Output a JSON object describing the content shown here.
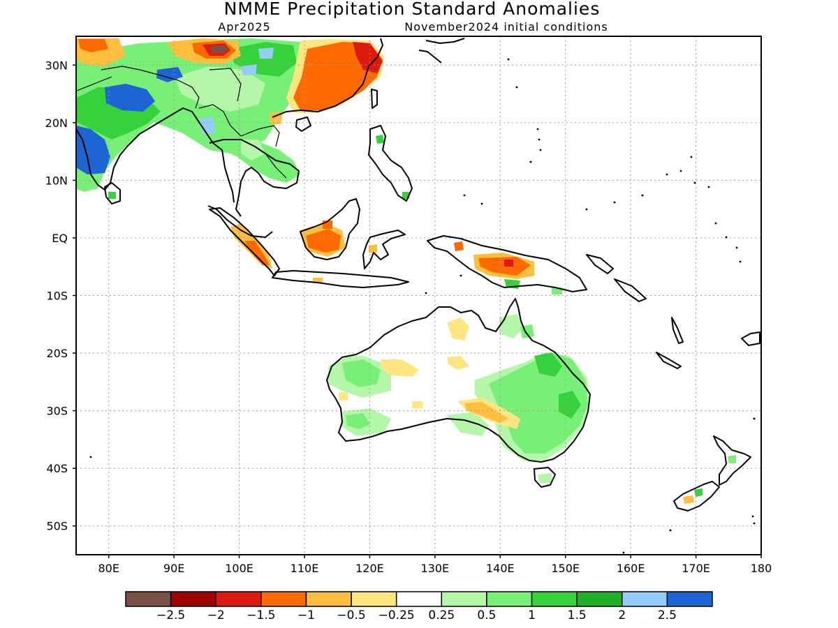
{
  "header": {
    "title": "NMME Precipitation Standard Anomalies",
    "valid_month": "Apr2025",
    "initial_conditions": "November2024 initial conditions"
  },
  "map": {
    "lon_range": [
      75,
      180
    ],
    "lat_range": [
      -55,
      35
    ],
    "lon_ticks": [
      {
        "value": 80,
        "label": "80E"
      },
      {
        "value": 90,
        "label": "90E"
      },
      {
        "value": 100,
        "label": "100E"
      },
      {
        "value": 110,
        "label": "110E"
      },
      {
        "value": 120,
        "label": "120E"
      },
      {
        "value": 130,
        "label": "130E"
      },
      {
        "value": 140,
        "label": "140E"
      },
      {
        "value": 150,
        "label": "150E"
      },
      {
        "value": 160,
        "label": "160E"
      },
      {
        "value": 170,
        "label": "170E"
      },
      {
        "value": 180,
        "label": "180"
      }
    ],
    "lat_ticks": [
      {
        "value": 30,
        "label": "30N"
      },
      {
        "value": 20,
        "label": "20N"
      },
      {
        "value": 10,
        "label": "10N"
      },
      {
        "value": 0,
        "label": "EQ"
      },
      {
        "value": -10,
        "label": "10S"
      },
      {
        "value": -20,
        "label": "20S"
      },
      {
        "value": -30,
        "label": "30S"
      },
      {
        "value": -40,
        "label": "40S"
      },
      {
        "value": -50,
        "label": "50S"
      }
    ],
    "grid": true
  },
  "colorbar": {
    "colors": [
      "#7a5146",
      "#a00000",
      "#dd1a10",
      "#ff6a00",
      "#ffbf3e",
      "#ffe680",
      "#ffffff",
      "#b5f7a8",
      "#78f078",
      "#36d23c",
      "#20b028",
      "#96cdf8",
      "#1e64d2"
    ],
    "labels": [
      "−2.5",
      "−2",
      "−1.5",
      "−1",
      "−0.5",
      "−0.25",
      "0.25",
      "0.5",
      "1",
      "1.5",
      "2",
      "2.5"
    ]
  }
}
